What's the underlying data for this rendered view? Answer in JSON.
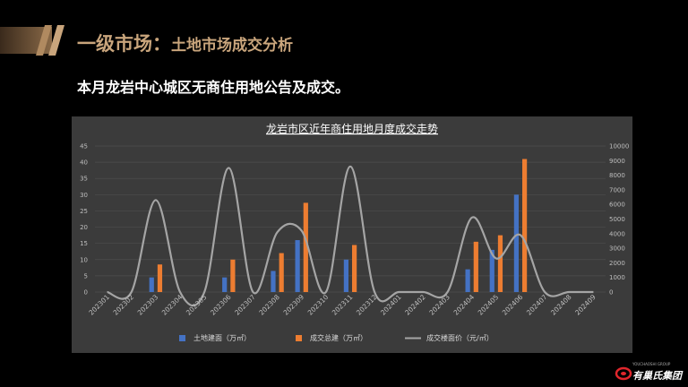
{
  "header": {
    "title_main": "一级市场：",
    "title_sub": "土地市场成交分析"
  },
  "description": "本月龙岩中心城区无商住用地公告及成交。",
  "chart_data": {
    "type": "bar",
    "title": "龙岩市区近年商住用地月度成交走势",
    "categories": [
      "202301",
      "202302",
      "202303",
      "202304",
      "202305",
      "202306",
      "202307",
      "202308",
      "202309",
      "202310",
      "202311",
      "202312",
      "202401",
      "202402",
      "202403",
      "202404",
      "202405",
      "202406",
      "202407",
      "202408",
      "202409"
    ],
    "series": [
      {
        "name": "土地建面（万㎡）",
        "type": "bar",
        "axis": "left",
        "color": "#4472c4",
        "values": [
          0,
          0,
          4.5,
          0,
          0,
          4.5,
          0,
          6.5,
          16,
          0,
          10,
          0,
          0,
          0,
          0,
          7,
          13,
          30,
          0,
          0,
          0
        ]
      },
      {
        "name": "成交总建（万㎡）",
        "type": "bar",
        "axis": "left",
        "color": "#ed7d31",
        "values": [
          0,
          0,
          8.5,
          0,
          0,
          10,
          0,
          12,
          27.5,
          0,
          14.5,
          0,
          0,
          0,
          0,
          15.5,
          17.5,
          41,
          0,
          0,
          0
        ]
      },
      {
        "name": "成交楼面价（元/㎡）",
        "type": "line",
        "axis": "right",
        "color": "#a5a5a5",
        "values": [
          0,
          0,
          6300,
          0,
          0,
          8500,
          0,
          4100,
          4200,
          0,
          8600,
          0,
          0,
          0,
          0,
          5100,
          2300,
          3900,
          0,
          0,
          0
        ]
      }
    ],
    "y_left": {
      "min": 0,
      "max": 45,
      "ticks": [
        0,
        5,
        10,
        15,
        20,
        25,
        30,
        35,
        40,
        45
      ]
    },
    "y_right": {
      "min": 0,
      "max": 10000,
      "ticks": [
        0,
        1000,
        2000,
        3000,
        4000,
        5000,
        6000,
        7000,
        8000,
        9000,
        10000
      ]
    },
    "grid": true,
    "legend_position": "bottom"
  },
  "logo": {
    "name": "有巢氏集团",
    "english": "YOUCHAOSHI GROUP"
  },
  "colors": {
    "background": "#000000",
    "accent_gold": "#c9a57c",
    "panel": "#3b3b3b"
  }
}
